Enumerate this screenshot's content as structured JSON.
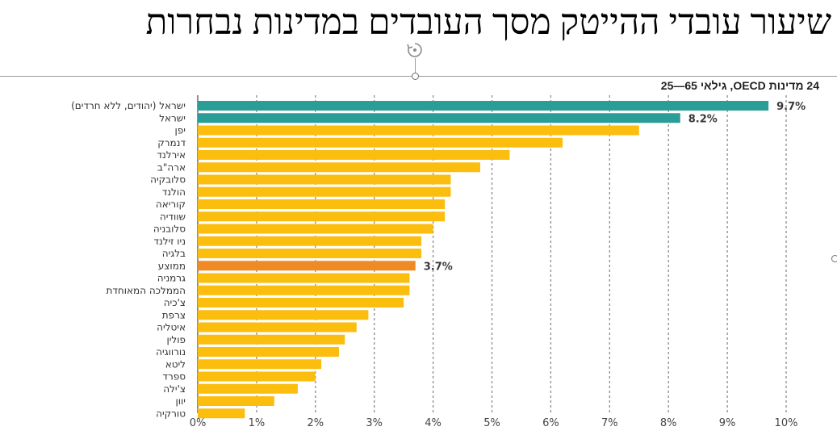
{
  "slide": {
    "title": "שיעור עובדי ההייטק מסך העובדים במדינות נבחרות"
  },
  "chart_data": {
    "type": "bar",
    "orientation": "horizontal",
    "title": "24 מדינות OECD, גילאי 65—25",
    "xlabel": "",
    "ylabel": "",
    "xlim": [
      0,
      10
    ],
    "xticks": [
      "0%",
      "1%",
      "2%",
      "3%",
      "4%",
      "5%",
      "6%",
      "7%",
      "8%",
      "9%",
      "10%"
    ],
    "grid": "vertical dashed",
    "categories": [
      "ישראל (יהודים, ללא חרדים)",
      "ישראל",
      "יפן",
      "דנמרק",
      "אירלנד",
      "ארה\"ב",
      "סלובקיה",
      "הולנד",
      "קוריאה",
      "שוודיה",
      "סלובניה",
      "ניו זילנד",
      "בלגיה",
      "ממוצע",
      "גרמניה",
      "הממלכה המאוחדת",
      "צ'כיה",
      "צרפת",
      "איטליה",
      "פולין",
      "נורווגיה",
      "ליטא",
      "ספרד",
      "צ'ילה",
      "יוון",
      "טורקיה"
    ],
    "values": [
      9.7,
      8.2,
      7.5,
      6.2,
      5.3,
      4.8,
      4.3,
      4.3,
      4.2,
      4.2,
      4.0,
      3.8,
      3.8,
      3.7,
      3.6,
      3.6,
      3.5,
      2.9,
      2.7,
      2.5,
      2.4,
      2.1,
      2.0,
      1.7,
      1.3,
      0.8
    ],
    "bar_colors": [
      "#2a9d96",
      "#2a9d96",
      "#fbbd0e",
      "#fbbd0e",
      "#fbbd0e",
      "#fbbd0e",
      "#fbbd0e",
      "#fbbd0e",
      "#fbbd0e",
      "#fbbd0e",
      "#fbbd0e",
      "#fbbd0e",
      "#fbbd0e",
      "#f08a24",
      "#fbbd0e",
      "#fbbd0e",
      "#fbbd0e",
      "#fbbd0e",
      "#fbbd0e",
      "#fbbd0e",
      "#fbbd0e",
      "#fbbd0e",
      "#fbbd0e",
      "#fbbd0e",
      "#fbbd0e",
      "#fbbd0e"
    ],
    "data_labels": [
      {
        "index": 0,
        "text": "9.7%"
      },
      {
        "index": 1,
        "text": "8.2%"
      },
      {
        "index": 13,
        "text": "3.7%"
      }
    ]
  }
}
